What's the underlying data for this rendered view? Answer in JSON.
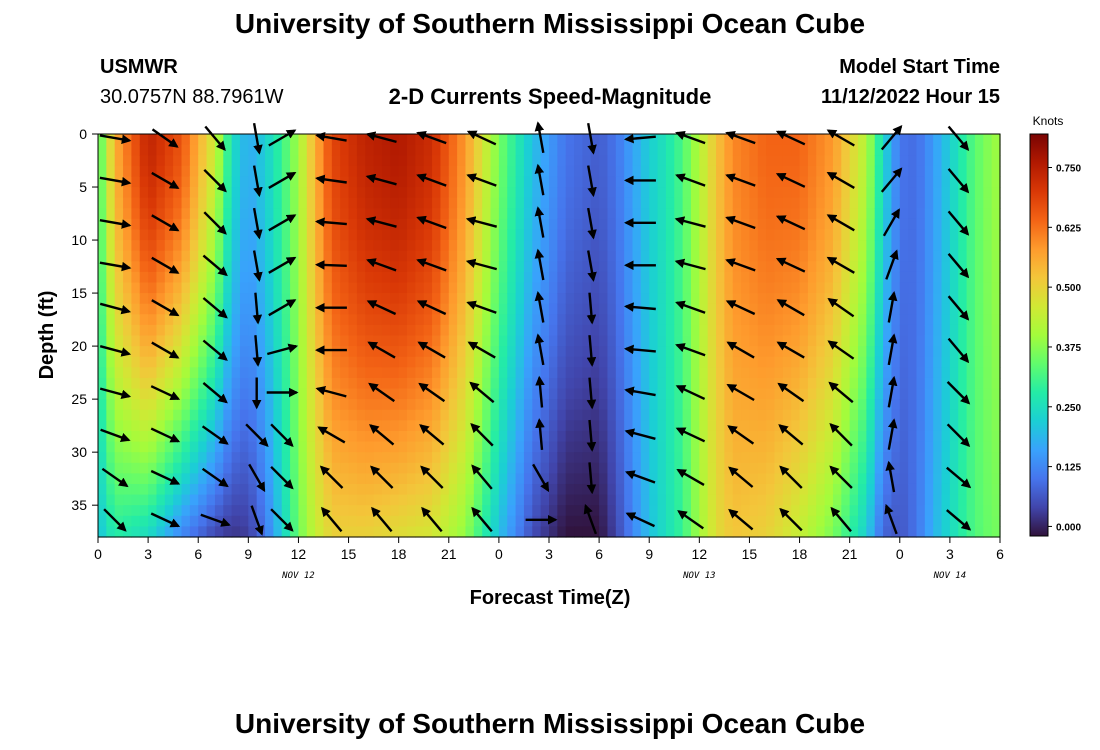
{
  "header": {
    "title": "University of Southern Mississippi Ocean Cube",
    "station": "USMWR",
    "coords": "30.0757N  88.7961W",
    "subtitle": "2-D Currents Speed-Magnitude",
    "model_start_label": "Model Start Time",
    "model_start_value": "11/12/2022 Hour 15"
  },
  "footer": {
    "title": "University of Southern Mississippi Ocean Cube"
  },
  "chart_data": {
    "type": "heatmap",
    "xlabel": "Forecast Time(Z)",
    "ylabel": "Depth (ft)",
    "x_tick_labels": [
      "0",
      "3",
      "6",
      "9",
      "12",
      "15",
      "18",
      "21",
      "0",
      "3",
      "6",
      "9",
      "12",
      "15",
      "18",
      "21",
      "0",
      "3",
      "6"
    ],
    "x_range_hours": [
      0,
      54
    ],
    "date_labels": [
      {
        "text": "NOV 12",
        "hour": 12
      },
      {
        "text": "NOV 13",
        "hour": 36
      },
      {
        "text": "NOV 14",
        "hour": 51
      }
    ],
    "y_ticks": [
      0,
      5,
      10,
      15,
      20,
      25,
      30,
      35
    ],
    "y_range": [
      0,
      38
    ],
    "y_reversed": true,
    "colorbar": {
      "unit": "Knots",
      "range": [
        -0.02,
        0.82
      ],
      "ticks": [
        "0.750",
        "0.625",
        "0.500",
        "0.375",
        "0.250",
        "0.125",
        "0.000"
      ],
      "tick_values": [
        0.75,
        0.625,
        0.5,
        0.375,
        0.25,
        0.125,
        0.0
      ],
      "colormap": [
        "#30123b",
        "#4145ab",
        "#4675ed",
        "#39a2fc",
        "#1bcfd4",
        "#24eca6",
        "#61fc6c",
        "#a4fc3b",
        "#d1e834",
        "#f3c63a",
        "#fe9b2d",
        "#f36315",
        "#d93806",
        "#b11901",
        "#7a0403"
      ]
    },
    "speed_knots": {
      "profile_hours": [
        0,
        1,
        3,
        5,
        7,
        8,
        9,
        10,
        11,
        12,
        13,
        14,
        16,
        18,
        20,
        22,
        24,
        26,
        28,
        30,
        31,
        32,
        33,
        34,
        35,
        36,
        37,
        38,
        40,
        42,
        44,
        46,
        47,
        48,
        49,
        50,
        51,
        52,
        53,
        54
      ],
      "surface": [
        0.3,
        0.55,
        0.74,
        0.66,
        0.45,
        0.25,
        0.17,
        0.22,
        0.3,
        0.4,
        0.55,
        0.68,
        0.74,
        0.76,
        0.72,
        0.58,
        0.36,
        0.2,
        0.1,
        0.07,
        0.1,
        0.16,
        0.22,
        0.26,
        0.32,
        0.42,
        0.52,
        0.6,
        0.64,
        0.64,
        0.58,
        0.42,
        0.24,
        0.1,
        0.09,
        0.15,
        0.22,
        0.3,
        0.36,
        0.4
      ],
      "bottom": [
        0.2,
        0.28,
        0.24,
        0.12,
        0.04,
        0.02,
        0.03,
        0.1,
        0.22,
        0.35,
        0.44,
        0.5,
        0.5,
        0.48,
        0.46,
        0.38,
        0.2,
        0.05,
        -0.02,
        -0.02,
        0.04,
        0.12,
        0.2,
        0.25,
        0.3,
        0.4,
        0.48,
        0.52,
        0.5,
        0.44,
        0.36,
        0.22,
        0.08,
        0.06,
        0.1,
        0.18,
        0.24,
        0.3,
        0.34,
        0.36
      ]
    },
    "vectors": {
      "columns_hours": [
        1.0,
        4.0,
        7.0,
        9.5,
        11.0,
        14.0,
        17.0,
        20.0,
        23.0,
        26.5,
        29.5,
        32.5,
        35.5,
        38.5,
        41.5,
        44.5,
        47.5,
        51.5
      ],
      "rows_depth_ft": [
        0,
        4,
        8,
        12,
        16,
        20,
        24,
        28,
        32,
        36
      ],
      "direction_deg": [
        [
          -10,
          -35,
          -50,
          -80,
          30,
          170,
          165,
          160,
          155,
          100,
          -80,
          185,
          160,
          160,
          155,
          150,
          50,
          -50
        ],
        [
          -10,
          -30,
          -45,
          -80,
          30,
          172,
          165,
          160,
          160,
          100,
          -80,
          180,
          160,
          160,
          155,
          150,
          50,
          -50
        ],
        [
          -10,
          -30,
          -45,
          -80,
          30,
          175,
          165,
          160,
          165,
          100,
          -80,
          180,
          165,
          160,
          155,
          150,
          60,
          -50
        ],
        [
          -10,
          -30,
          -40,
          -80,
          30,
          178,
          160,
          160,
          165,
          100,
          -80,
          180,
          165,
          160,
          155,
          150,
          70,
          -50
        ],
        [
          -15,
          -30,
          -40,
          -85,
          30,
          180,
          155,
          155,
          160,
          100,
          -85,
          175,
          160,
          155,
          150,
          145,
          80,
          -50
        ],
        [
          -15,
          -30,
          -40,
          -85,
          15,
          180,
          150,
          150,
          150,
          100,
          -85,
          175,
          160,
          150,
          150,
          145,
          80,
          -50
        ],
        [
          -15,
          -25,
          -40,
          -90,
          0,
          165,
          145,
          145,
          140,
          95,
          -85,
          170,
          155,
          150,
          145,
          140,
          80,
          -45
        ],
        [
          -20,
          -25,
          -35,
          -45,
          -45,
          150,
          140,
          140,
          135,
          95,
          -85,
          165,
          155,
          145,
          140,
          135,
          80,
          -45
        ],
        [
          -35,
          -25,
          -35,
          -60,
          -45,
          135,
          135,
          135,
          130,
          -60,
          -85,
          160,
          150,
          140,
          135,
          135,
          100,
          -40
        ],
        [
          -45,
          -25,
          -20,
          -70,
          -45,
          130,
          130,
          130,
          130,
          0,
          110,
          155,
          145,
          140,
          135,
          130,
          110,
          -40
        ]
      ]
    }
  }
}
